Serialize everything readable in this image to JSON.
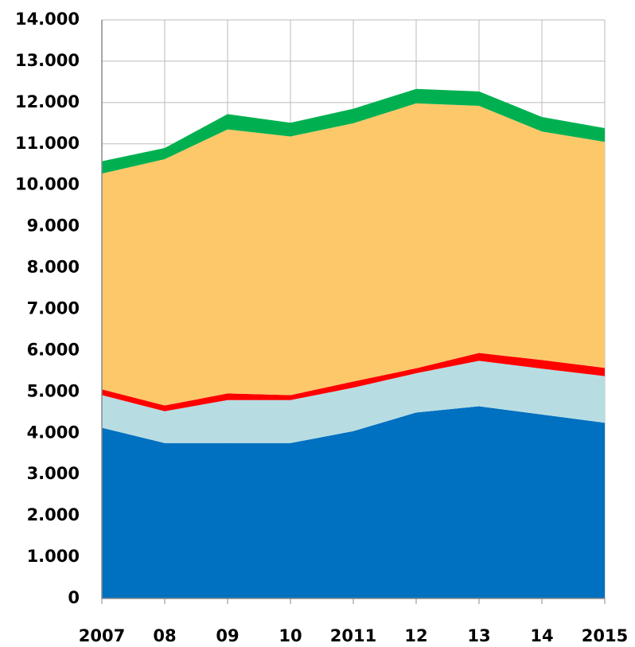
{
  "chart_data": {
    "type": "stacked-area",
    "categories": [
      "2007",
      "08",
      "09",
      "10",
      "2011",
      "12",
      "13",
      "14",
      "2015"
    ],
    "series": [
      {
        "color": "#0070c0",
        "values": [
          4130,
          3760,
          3760,
          3760,
          4050,
          4500,
          4650,
          4450,
          4250
        ]
      },
      {
        "color": "#b7dde3",
        "values": [
          790,
          770,
          1040,
          1040,
          1050,
          950,
          1100,
          1110,
          1130
        ]
      },
      {
        "color": "#ff0000",
        "values": [
          140,
          140,
          160,
          120,
          150,
          120,
          190,
          210,
          200
        ]
      },
      {
        "color": "#fcc86a",
        "values": [
          5220,
          5960,
          6390,
          6260,
          6250,
          6410,
          5980,
          5530,
          5470
        ]
      },
      {
        "color": "#00b050",
        "values": [
          300,
          270,
          370,
          330,
          350,
          350,
          350,
          350,
          330
        ]
      }
    ],
    "ylim": [
      0,
      14000
    ],
    "yticks": [
      0,
      {
        "value": 1000,
        "label": "1.000"
      },
      {
        "value": 2000,
        "label": "2.000"
      },
      {
        "value": 3000,
        "label": "3.000"
      },
      {
        "value": 4000,
        "label": "4.000"
      },
      {
        "value": 5000,
        "label": "5.000"
      },
      {
        "value": 6000,
        "label": "6.000"
      },
      {
        "value": 7000,
        "label": "7.000"
      },
      {
        "value": 8000,
        "label": "8.000"
      },
      {
        "value": 9000,
        "label": "9.000"
      },
      {
        "value": 10000,
        "label": "10.000"
      },
      {
        "value": 11000,
        "label": "11.000"
      },
      {
        "value": 12000,
        "label": "12.000"
      },
      {
        "value": 13000,
        "label": "13.000"
      },
      {
        "value": 14000,
        "label": "14.000"
      }
    ],
    "grid": true
  }
}
